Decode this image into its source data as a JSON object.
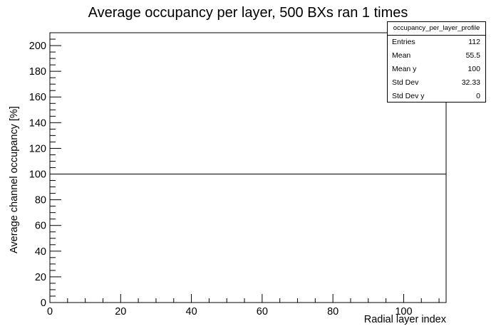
{
  "chart_data": {
    "type": "line",
    "title": "Average occupancy per layer, 500 BXs ran 1 times",
    "xlabel": "Radial layer index",
    "ylabel": "Average channel occupancy [%]",
    "xlim": [
      0,
      112
    ],
    "ylim": [
      0,
      210
    ],
    "xticks": [
      0,
      20,
      40,
      60,
      80,
      100
    ],
    "yticks": [
      0,
      20,
      40,
      60,
      80,
      100,
      120,
      140,
      160,
      180,
      200
    ],
    "series": [
      {
        "x": [
          0,
          112
        ],
        "y": [
          100,
          100
        ]
      }
    ],
    "grid": false,
    "stats_box": {
      "name": "occupancy_per_layer_profile",
      "rows": [
        {
          "key": "Entries",
          "value": "112"
        },
        {
          "key": "Mean",
          "value": "55.5"
        },
        {
          "key": "Mean y",
          "value": "100"
        },
        {
          "key": "Std Dev",
          "value": "32.33"
        },
        {
          "key": "Std Dev y",
          "value": "0"
        }
      ]
    }
  }
}
